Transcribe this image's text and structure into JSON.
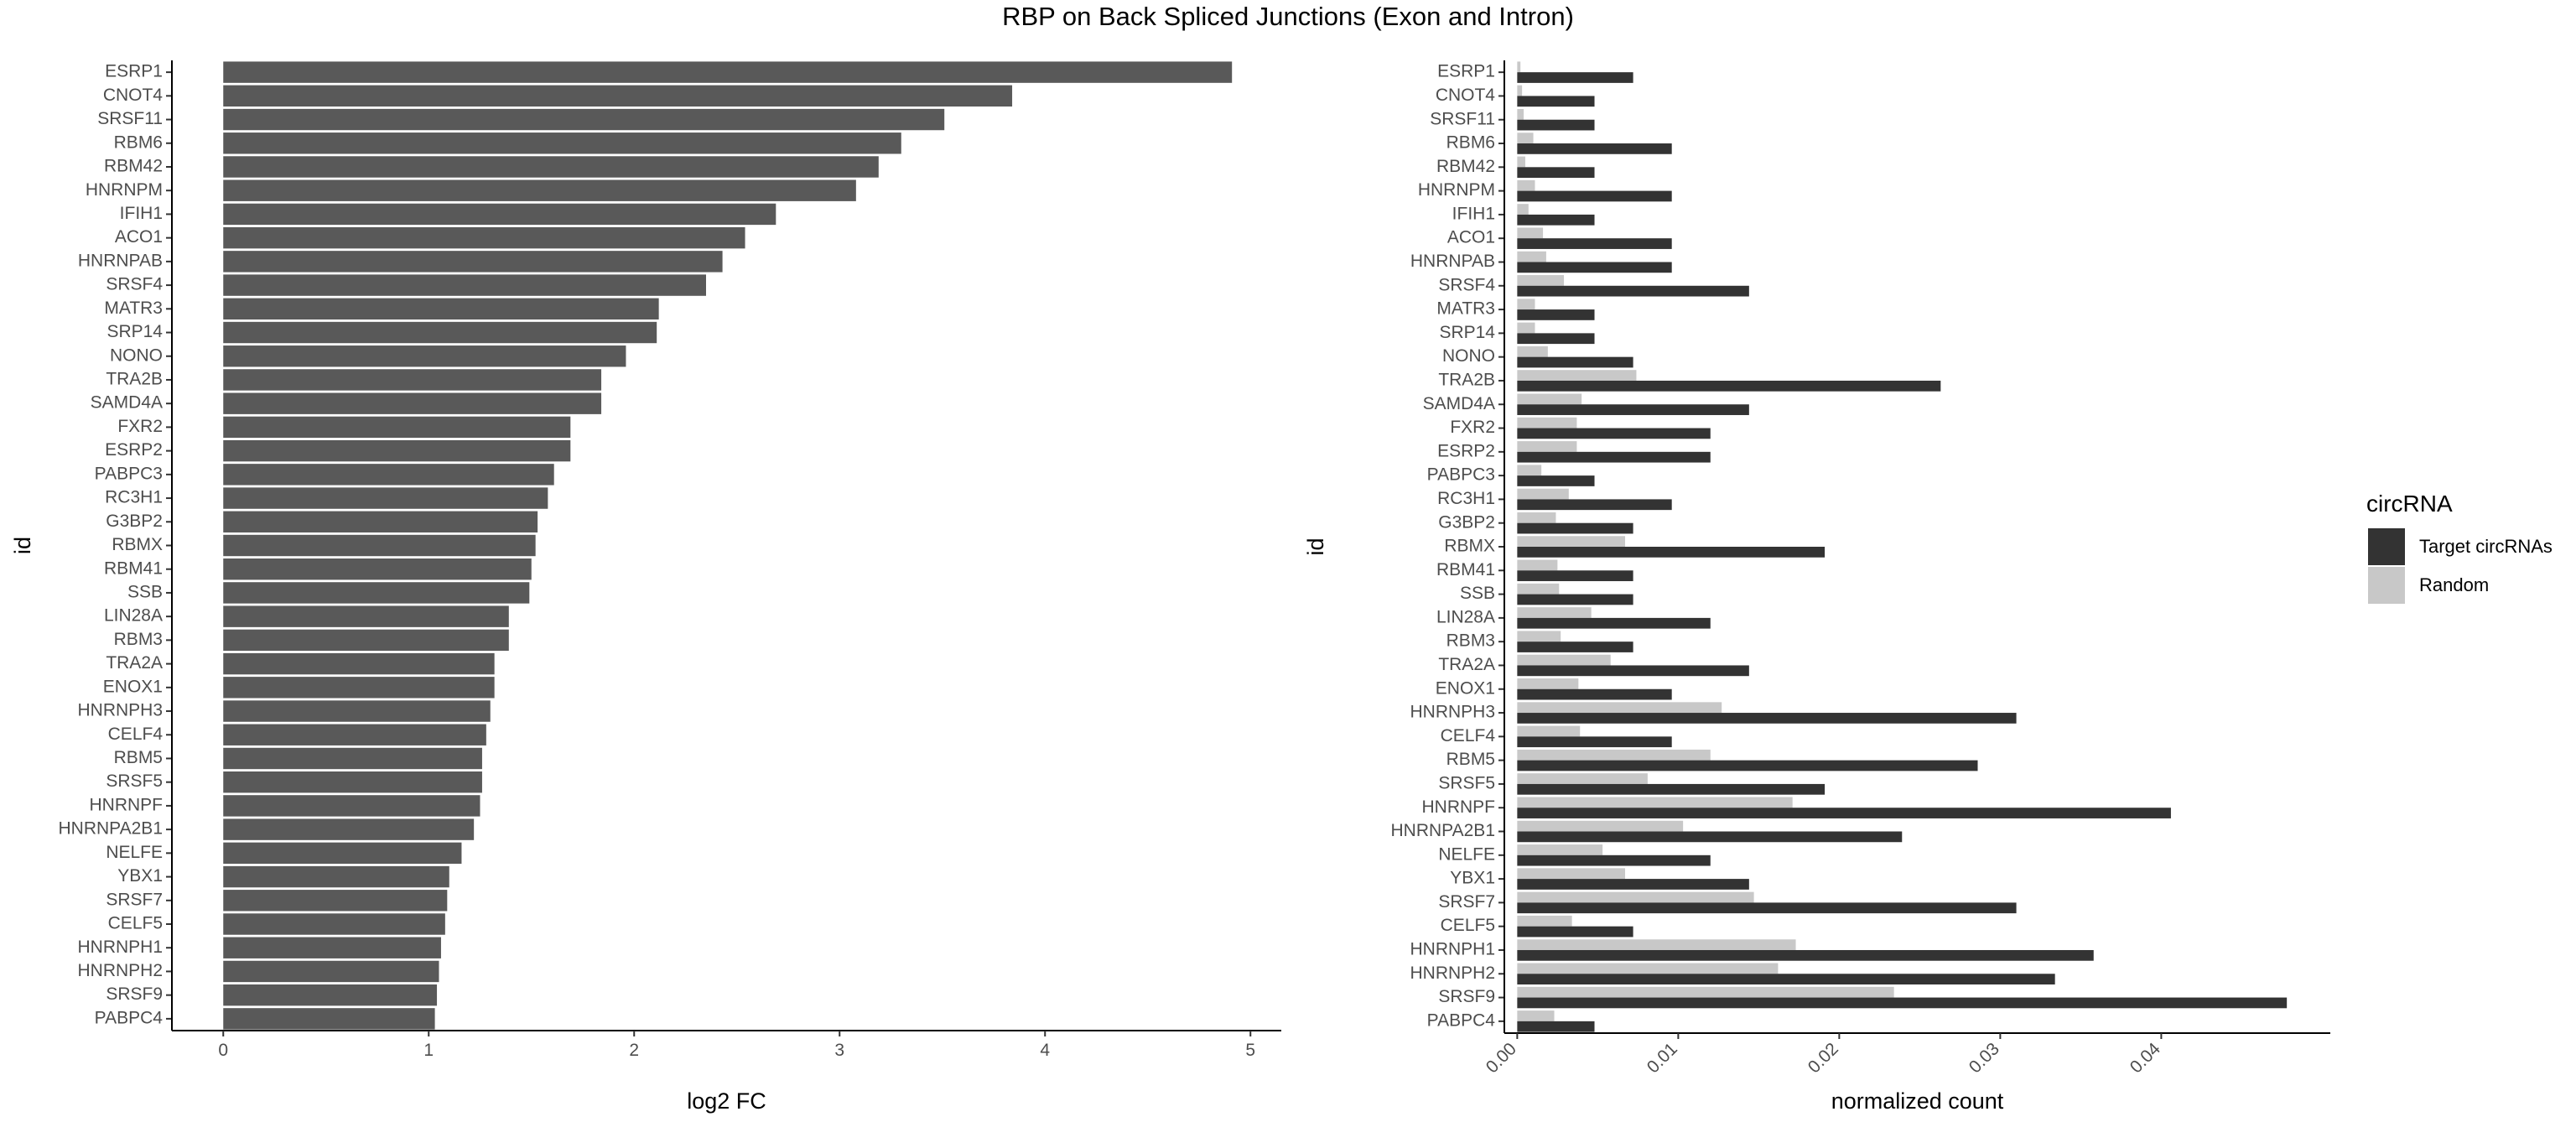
{
  "page": {
    "title": "RBP on Back Spliced Junctions (Exon and Intron)"
  },
  "chart_data": [
    {
      "type": "bar",
      "orientation": "horizontal",
      "xlabel": "log2 FC",
      "ylabel": "id",
      "xlim": [
        -0.25,
        5.15
      ],
      "xticks": [
        0,
        1,
        2,
        3,
        4,
        5
      ],
      "bar_color": "#595959",
      "grid": false,
      "categories": [
        "ESRP1",
        "CNOT4",
        "SRSF11",
        "RBM6",
        "RBM42",
        "HNRNPM",
        "IFIH1",
        "ACO1",
        "HNRNPAB",
        "SRSF4",
        "MATR3",
        "SRP14",
        "NONO",
        "TRA2B",
        "SAMD4A",
        "FXR2",
        "ESRP2",
        "PABPC3",
        "RC3H1",
        "G3BP2",
        "RBMX",
        "RBM41",
        "SSB",
        "LIN28A",
        "RBM3",
        "TRA2A",
        "ENOX1",
        "HNRNPH3",
        "CELF4",
        "RBM5",
        "SRSF5",
        "HNRNPF",
        "HNRNPA2B1",
        "NELFE",
        "YBX1",
        "SRSF7",
        "CELF5",
        "HNRNPH1",
        "HNRNPH2",
        "SRSF9",
        "PABPC4"
      ],
      "values": [
        4.91,
        3.84,
        3.51,
        3.3,
        3.19,
        3.08,
        2.69,
        2.54,
        2.43,
        2.35,
        2.12,
        2.11,
        1.96,
        1.84,
        1.84,
        1.69,
        1.69,
        1.61,
        1.58,
        1.53,
        1.52,
        1.5,
        1.49,
        1.39,
        1.39,
        1.32,
        1.32,
        1.3,
        1.28,
        1.26,
        1.26,
        1.25,
        1.22,
        1.16,
        1.1,
        1.09,
        1.08,
        1.06,
        1.05,
        1.04,
        1.03
      ]
    },
    {
      "type": "bar",
      "orientation": "horizontal",
      "grouped": true,
      "xlabel": "normalized count",
      "ylabel": "id",
      "xlim": [
        -0.0008,
        0.0505
      ],
      "xticks": [
        0.0,
        0.01,
        0.02,
        0.03,
        0.04
      ],
      "xtick_labels": [
        "0.00",
        "0.01",
        "0.02",
        "0.03",
        "0.04"
      ],
      "grid": false,
      "categories": [
        "ESRP1",
        "CNOT4",
        "SRSF11",
        "RBM6",
        "RBM42",
        "HNRNPM",
        "IFIH1",
        "ACO1",
        "HNRNPAB",
        "SRSF4",
        "MATR3",
        "SRP14",
        "NONO",
        "TRA2B",
        "SAMD4A",
        "FXR2",
        "ESRP2",
        "PABPC3",
        "RC3H1",
        "G3BP2",
        "RBMX",
        "RBM41",
        "SSB",
        "LIN28A",
        "RBM3",
        "TRA2A",
        "ENOX1",
        "HNRNPH3",
        "CELF4",
        "RBM5",
        "SRSF5",
        "HNRNPF",
        "HNRNPA2B1",
        "NELFE",
        "YBX1",
        "SRSF7",
        "CELF5",
        "HNRNPH1",
        "HNRNPH2",
        "SRSF9",
        "PABPC4"
      ],
      "legend": {
        "title": "circRNA",
        "position": "right"
      },
      "series": [
        {
          "name": "Random",
          "color": "#c8c8c8",
          "values": [
            0.0002,
            0.0003,
            0.0004,
            0.001,
            0.0005,
            0.0011,
            0.0007,
            0.0016,
            0.0018,
            0.0029,
            0.0011,
            0.0011,
            0.0019,
            0.0074,
            0.004,
            0.0037,
            0.0037,
            0.0015,
            0.0032,
            0.0024,
            0.0067,
            0.0025,
            0.0026,
            0.0046,
            0.0027,
            0.0058,
            0.0038,
            0.0127,
            0.0039,
            0.012,
            0.0081,
            0.0171,
            0.0103,
            0.0053,
            0.0067,
            0.0147,
            0.0034,
            0.0173,
            0.0162,
            0.0234,
            0.0023
          ]
        },
        {
          "name": "Target circRNAs",
          "color": "#333333",
          "values": [
            0.0072,
            0.0048,
            0.0048,
            0.0096,
            0.0048,
            0.0096,
            0.0048,
            0.0096,
            0.0096,
            0.0144,
            0.0048,
            0.0048,
            0.0072,
            0.0263,
            0.0144,
            0.012,
            0.012,
            0.0048,
            0.0096,
            0.0072,
            0.0191,
            0.0072,
            0.0072,
            0.012,
            0.0072,
            0.0144,
            0.0096,
            0.031,
            0.0096,
            0.0286,
            0.0191,
            0.0406,
            0.0239,
            0.012,
            0.0144,
            0.031,
            0.0072,
            0.0358,
            0.0334,
            0.0478,
            0.0048
          ]
        }
      ]
    }
  ]
}
